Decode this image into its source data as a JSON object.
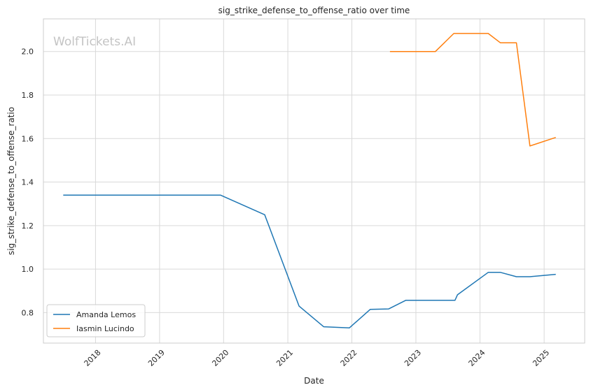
{
  "chart_data": {
    "type": "line",
    "title": "sig_strike_defense_to_offense_ratio over time",
    "xlabel": "Date",
    "ylabel": "sig_strike_defense_to_offense_ratio",
    "watermark": "WolfTickets.AI",
    "x_ticks": [
      "2018",
      "2019",
      "2020",
      "2021",
      "2022",
      "2023",
      "2024",
      "2025"
    ],
    "y_ticks": [
      "0.8",
      "1.0",
      "1.2",
      "1.4",
      "1.6",
      "1.8",
      "2.0"
    ],
    "xlim": [
      "2017-03-10",
      "2025-08-20"
    ],
    "ylim": [
      0.66,
      2.15
    ],
    "grid": true,
    "legend_position": "lower-left",
    "series": [
      {
        "name": "Amanda Lemos",
        "color": "#1f77b4",
        "points": [
          {
            "x": "2017-07-01",
            "y": 1.34
          },
          {
            "x": "2019-12-14",
            "y": 1.34
          },
          {
            "x": "2020-08-22",
            "y": 1.25
          },
          {
            "x": "2021-03-06",
            "y": 0.83
          },
          {
            "x": "2021-07-24",
            "y": 0.735
          },
          {
            "x": "2021-12-18",
            "y": 0.73
          },
          {
            "x": "2022-04-16",
            "y": 0.815
          },
          {
            "x": "2022-07-30",
            "y": 0.817
          },
          {
            "x": "2022-11-05",
            "y": 0.857
          },
          {
            "x": "2023-08-12",
            "y": 0.857
          },
          {
            "x": "2023-08-26",
            "y": 0.882
          },
          {
            "x": "2024-02-17",
            "y": 0.985
          },
          {
            "x": "2024-04-27",
            "y": 0.985
          },
          {
            "x": "2024-07-27",
            "y": 0.965
          },
          {
            "x": "2024-10-12",
            "y": 0.965
          },
          {
            "x": "2025-03-08",
            "y": 0.976
          }
        ]
      },
      {
        "name": "Iasmin Lucindo",
        "color": "#ff7f0e",
        "points": [
          {
            "x": "2022-08-06",
            "y": 2.0
          },
          {
            "x": "2023-04-22",
            "y": 2.0
          },
          {
            "x": "2023-08-05",
            "y": 2.083
          },
          {
            "x": "2024-02-17",
            "y": 2.083
          },
          {
            "x": "2024-04-27",
            "y": 2.04
          },
          {
            "x": "2024-07-27",
            "y": 2.04
          },
          {
            "x": "2024-10-12",
            "y": 1.566
          },
          {
            "x": "2025-03-08",
            "y": 1.605
          }
        ]
      }
    ]
  }
}
